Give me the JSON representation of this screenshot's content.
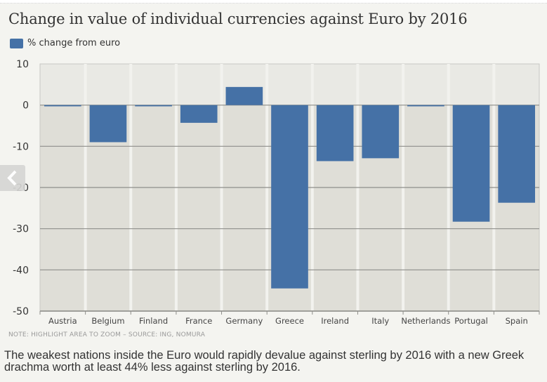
{
  "chart_data": {
    "type": "bar",
    "title": "Change in value of individual currencies against Euro by 2016",
    "legend": [
      {
        "name": "% change from euro",
        "color": "#4571a6"
      }
    ],
    "legend_position": "top-left",
    "categories": [
      "Austria",
      "Belgium",
      "Finland",
      "France",
      "Germany",
      "Greece",
      "Ireland",
      "Italy",
      "Netherlands",
      "Portugal",
      "Spain"
    ],
    "series": [
      {
        "name": "% change from euro",
        "values": [
          -0.3,
          -9.0,
          -0.3,
          -4.3,
          4.4,
          -44.5,
          -13.6,
          -12.9,
          -0.3,
          -28.3,
          -23.7
        ]
      }
    ],
    "xlabel": "",
    "ylabel": "",
    "ylim": [
      -50,
      10
    ],
    "yticks": [
      10,
      0,
      -10,
      -20,
      -30,
      -40,
      -50
    ],
    "grid": true
  },
  "nav": {
    "prev_icon": "chevron-left-icon"
  },
  "note": "NOTE: HIGHLIGHT AREA TO ZOOM – SOURCE: ING, NOMURA",
  "caption": "The weakest nations inside the Euro would rapidly devalue against sterling by 2016 with a new Greek drachma worth at least 44% less against sterling by 2016."
}
